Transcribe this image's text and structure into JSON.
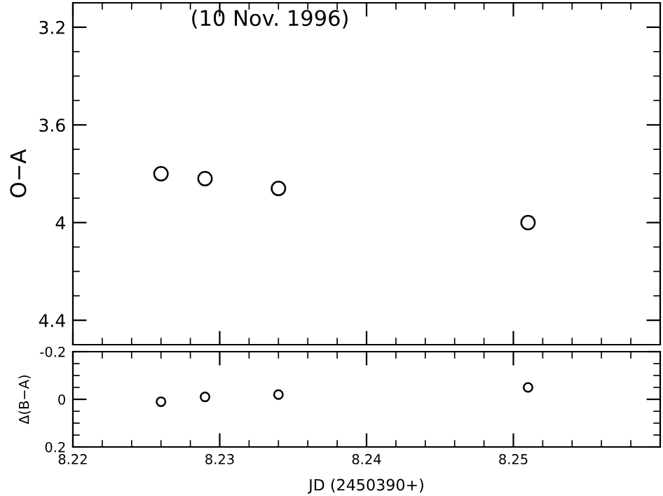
{
  "chart_data": [
    {
      "type": "scatter",
      "ylabel": "O−A",
      "annotations": [
        "(10 Nov. 1996)"
      ],
      "x": [
        8.226,
        8.229,
        8.234,
        8.251
      ],
      "values": [
        3.8,
        3.82,
        3.86,
        4.0
      ],
      "color": "#000000",
      "marker": "circle",
      "xlim": [
        8.22,
        8.26
      ],
      "xticks": [
        8.22,
        8.23,
        8.24,
        8.25
      ],
      "ylim": [
        4.5,
        3.1
      ],
      "yticks": [
        3.2,
        3.6,
        4,
        4.4
      ],
      "tick_labels": "y",
      "grid": false,
      "legend": false
    },
    {
      "type": "scatter",
      "ylabel": "Δ(B−A)",
      "xlabel": "JD (2450390+)",
      "x": [
        8.226,
        8.229,
        8.234,
        8.251
      ],
      "values": [
        0.01,
        -0.01,
        -0.02,
        -0.05
      ],
      "color": "#000000",
      "marker": "circle",
      "xlim": [
        8.22,
        8.26
      ],
      "xticks": [
        8.22,
        8.23,
        8.24,
        8.25
      ],
      "ylim": [
        0.2,
        -0.2
      ],
      "yticks": [
        -0.2,
        0,
        0.2
      ],
      "grid": false,
      "legend": false
    }
  ]
}
